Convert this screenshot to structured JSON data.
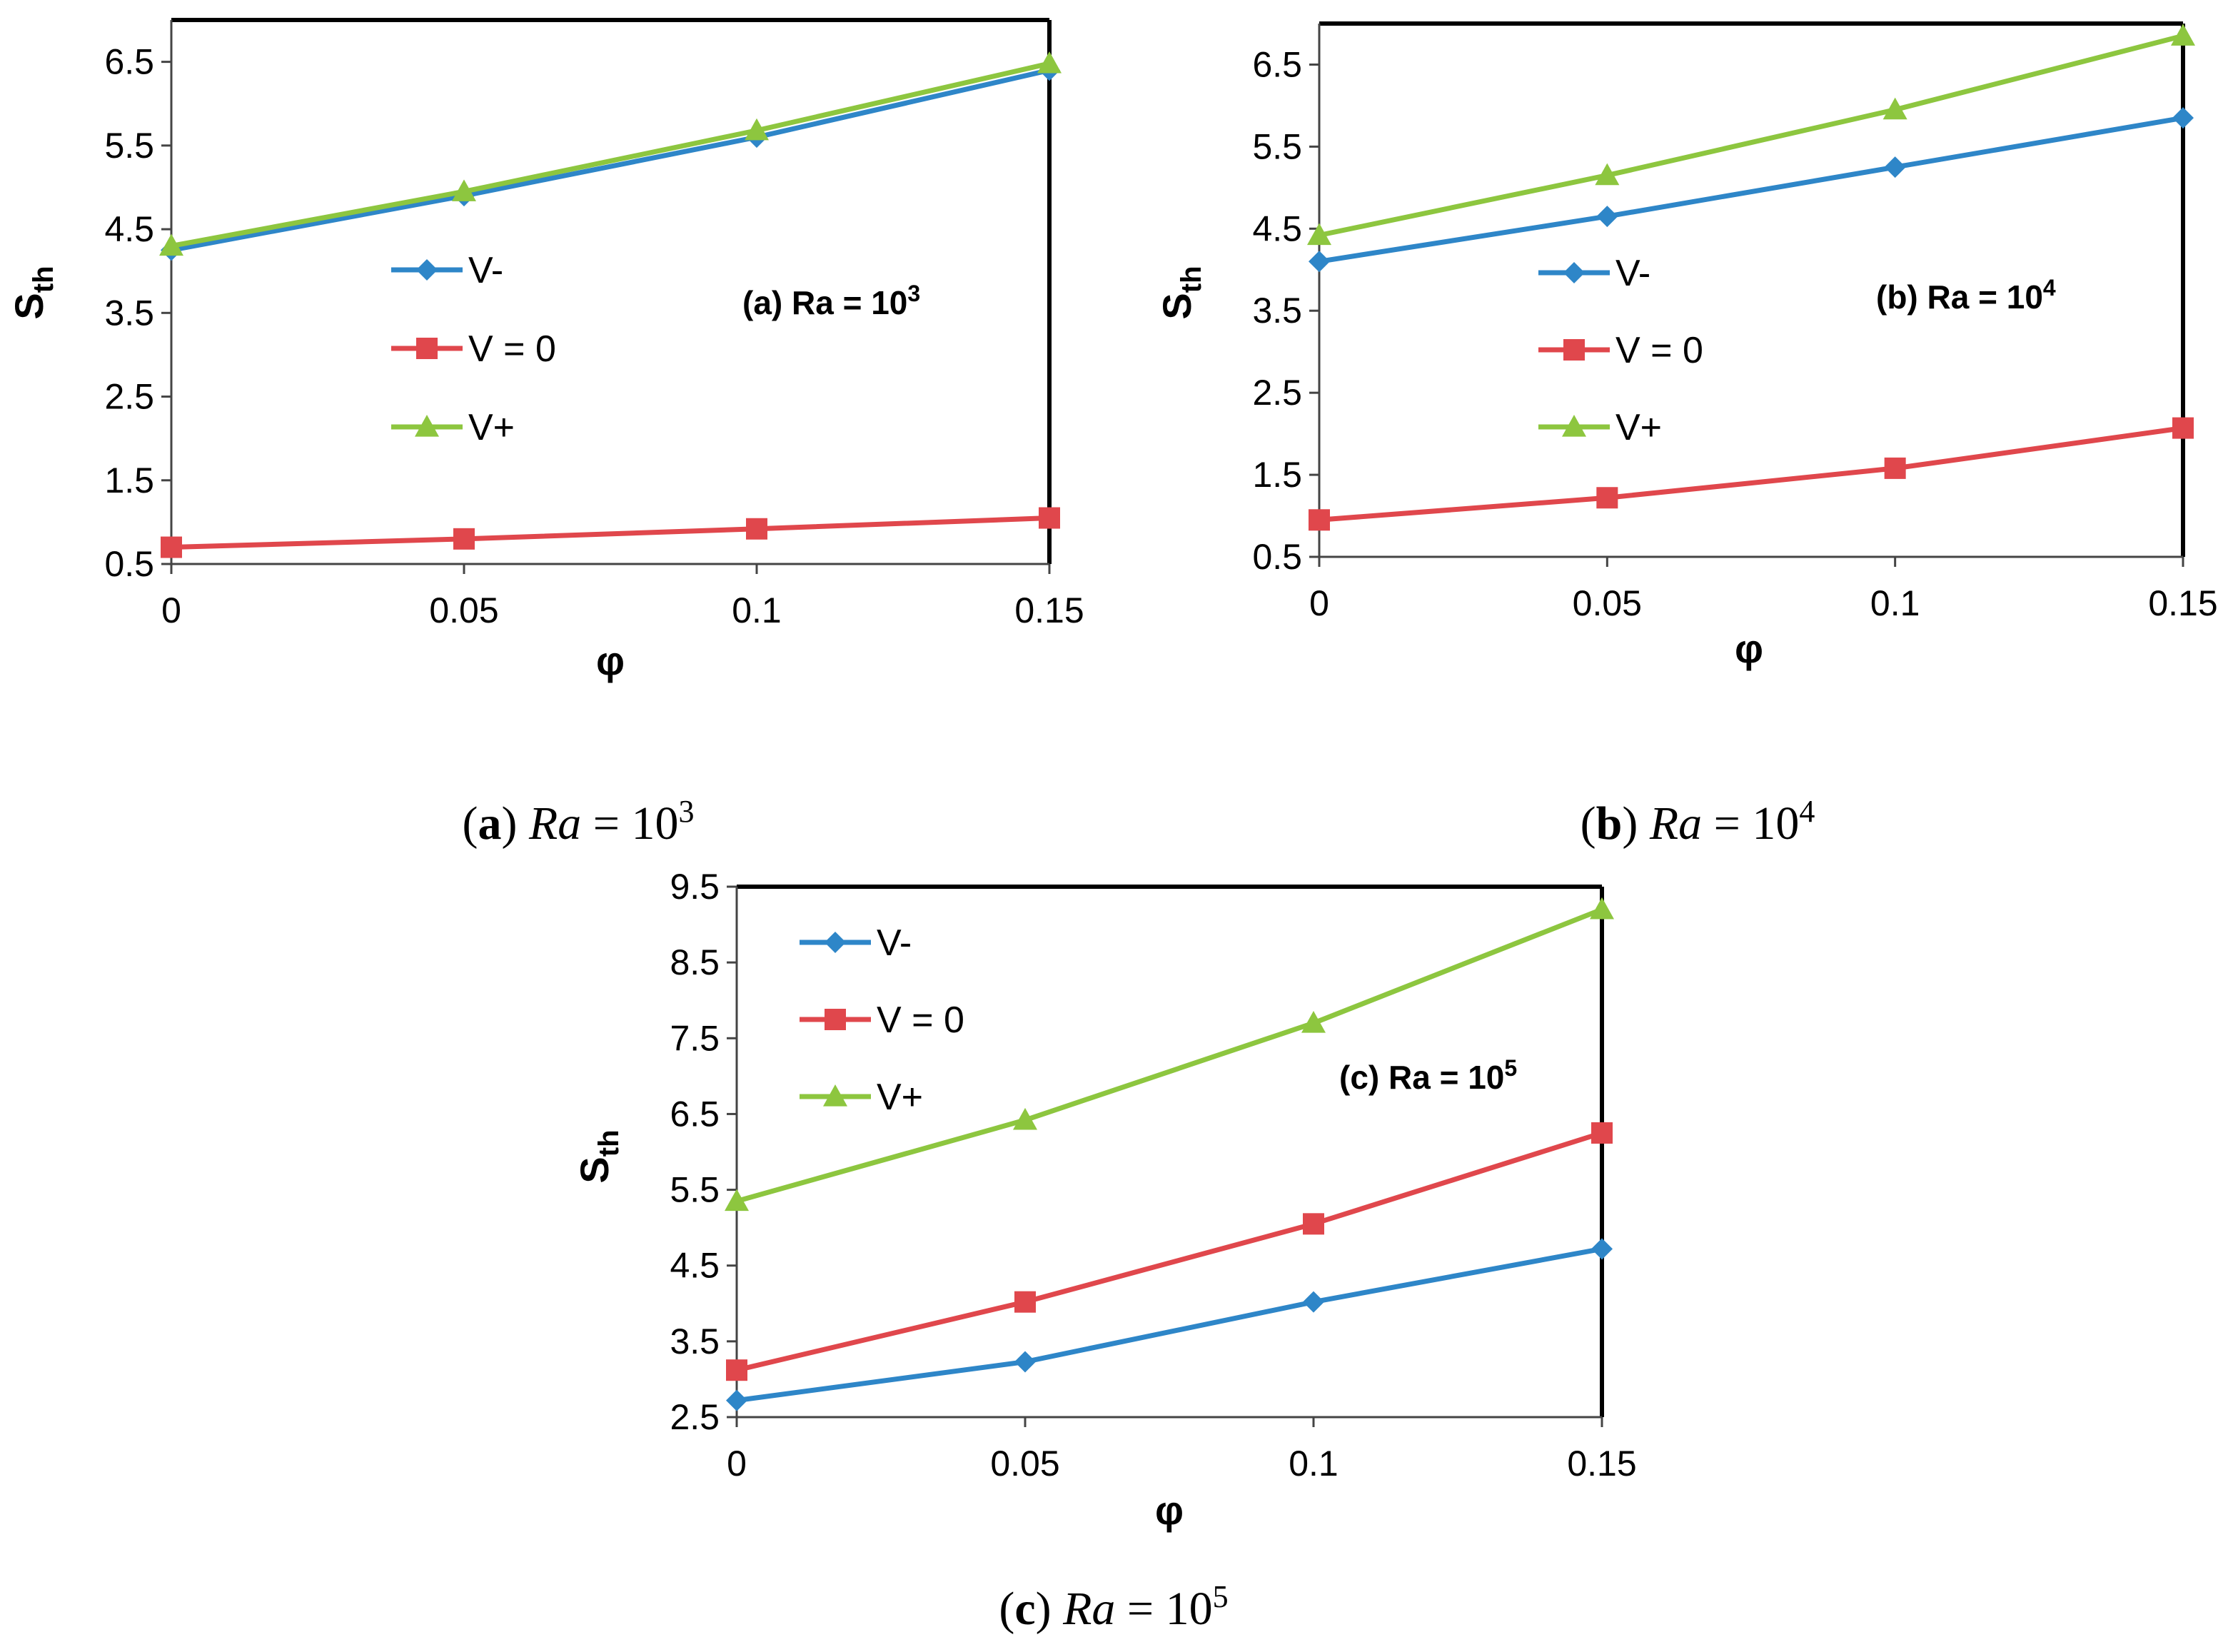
{
  "colors": {
    "v_minus": "#2E86C8",
    "v_zero": "#E0474C",
    "v_plus": "#8DC63F",
    "frame": "#000000"
  },
  "chart_data": [
    {
      "type": "line",
      "panel": "a",
      "caption": {
        "letter": "a",
        "var": "Ra",
        "eq": "=",
        "base": "10",
        "exp": "3"
      },
      "inner_label": {
        "text": "(a) Ra = 10",
        "exp": "3"
      },
      "xlabel": "φ",
      "ylabel": {
        "main": "S",
        "sub": "th"
      },
      "x": [
        0,
        0.05,
        0.1,
        0.15
      ],
      "x_tick_labels": [
        "0",
        "0.05",
        "0.1",
        "0.15"
      ],
      "ylim": [
        0.5,
        7.0
      ],
      "y_ticks": [
        0.5,
        1.5,
        2.5,
        3.5,
        4.5,
        5.5,
        6.5
      ],
      "y_tick_labels": [
        "0.5",
        "1.5",
        "2.5",
        "3.5",
        "4.5",
        "5.5",
        "6.5"
      ],
      "legend_position": "center-left",
      "series": [
        {
          "name": "V-",
          "marker": "diamond",
          "values": [
            4.25,
            4.9,
            5.6,
            6.4
          ]
        },
        {
          "name": "V = 0",
          "marker": "square",
          "values": [
            0.7,
            0.8,
            0.92,
            1.05
          ]
        },
        {
          "name": "V+",
          "marker": "triangle",
          "values": [
            4.3,
            4.95,
            5.68,
            6.48
          ]
        }
      ]
    },
    {
      "type": "line",
      "panel": "b",
      "caption": {
        "letter": "b",
        "var": "Ra",
        "eq": "=",
        "base": "10",
        "exp": "4"
      },
      "inner_label": {
        "text": "(b) Ra = 10",
        "exp": "4"
      },
      "xlabel": "φ",
      "ylabel": {
        "main": "S",
        "sub": "th"
      },
      "x": [
        0,
        0.05,
        0.1,
        0.15
      ],
      "x_tick_labels": [
        "0",
        "0.05",
        "0.1",
        "0.15"
      ],
      "ylim": [
        0.5,
        7.0
      ],
      "y_ticks": [
        0.5,
        1.5,
        2.5,
        3.5,
        4.5,
        5.5,
        6.5
      ],
      "y_tick_labels": [
        "0.5",
        "1.5",
        "2.5",
        "3.5",
        "4.5",
        "5.5",
        "6.5"
      ],
      "legend_position": "center-left",
      "series": [
        {
          "name": "V-",
          "marker": "diamond",
          "values": [
            4.1,
            4.65,
            5.25,
            5.85
          ]
        },
        {
          "name": "V = 0",
          "marker": "square",
          "values": [
            0.95,
            1.22,
            1.58,
            2.07
          ]
        },
        {
          "name": "V+",
          "marker": "triangle",
          "values": [
            4.42,
            5.15,
            5.95,
            6.85
          ]
        }
      ]
    },
    {
      "type": "line",
      "panel": "c",
      "caption": {
        "letter": "c",
        "var": "Ra",
        "eq": "=",
        "base": "10",
        "exp": "5"
      },
      "inner_label": {
        "text": "(c) Ra = 10",
        "exp": "5"
      },
      "xlabel": "φ",
      "ylabel": {
        "main": "S",
        "sub": "th"
      },
      "x": [
        0,
        0.05,
        0.1,
        0.15
      ],
      "x_tick_labels": [
        "0",
        "0.05",
        "0.1",
        "0.15"
      ],
      "ylim": [
        2.5,
        9.5
      ],
      "y_ticks": [
        2.5,
        3.5,
        4.5,
        5.5,
        6.5,
        7.5,
        8.5,
        9.5
      ],
      "y_tick_labels": [
        "2.5",
        "3.5",
        "4.5",
        "5.5",
        "6.5",
        "7.5",
        "8.5",
        "9.5"
      ],
      "legend_position": "top-left",
      "series": [
        {
          "name": "V-",
          "marker": "diamond",
          "values": [
            2.72,
            3.23,
            4.02,
            4.72
          ]
        },
        {
          "name": "V = 0",
          "marker": "square",
          "values": [
            3.12,
            4.02,
            5.05,
            6.25
          ]
        },
        {
          "name": "V+",
          "marker": "triangle",
          "values": [
            5.35,
            6.42,
            7.7,
            9.2
          ]
        }
      ]
    }
  ]
}
